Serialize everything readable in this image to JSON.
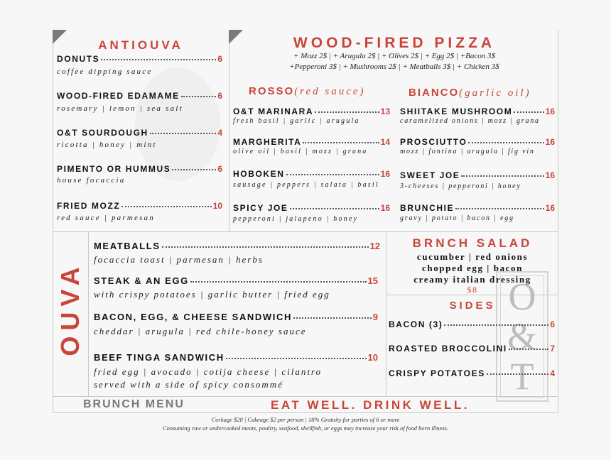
{
  "antipasti": {
    "title": "ANTIOUVA",
    "items": [
      {
        "name": "DONUTS",
        "price": "6",
        "desc": "coffee dipping sauce"
      },
      {
        "name": "WOOD-FIRED EDAMAME",
        "price": "6",
        "desc": "rosemary | lemon | sea salt"
      },
      {
        "name": "O&T SOURDOUGH",
        "price": "4",
        "desc": "ricotta | honey | mint"
      },
      {
        "name": "PIMENTO OR HUMMUS",
        "price": "6",
        "desc": "house focaccia"
      },
      {
        "name": "FRIED MOZZ",
        "price": "10",
        "desc": "red sauce | parmesan"
      }
    ]
  },
  "pizza": {
    "title": "WOOD-FIRED PIZZA",
    "addons_line1": "+ Mozz 2$  |  + Arugula 2$ |  + Olives 2$  | + Egg 2$  | +Bacon 3$",
    "addons_line2": "+Pepperoni 3$ | + Mushrooms 2$  | + Meatballs 3$ | + Chicken 3$",
    "rosso": {
      "title": "ROSSO",
      "subtitle": "(red sauce)",
      "items": [
        {
          "name": "O&T MARINARA",
          "price": "13",
          "desc": " fresh basil | garlic | arugula"
        },
        {
          "name": "MARGHERITA",
          "price": "14",
          "desc": "olive oil | basil | mozz | grana"
        },
        {
          "name": "HOBOKEN",
          "price": "16",
          "desc": "sausage | peppers | salata | basil"
        },
        {
          "name": "SPICY JOE",
          "price": "16",
          "desc": "pepperoni | jalapeno | honey"
        }
      ]
    },
    "bianco": {
      "title": "BIANCO",
      "subtitle": "(garlic oil)",
      "items": [
        {
          "name": "SHIITAKE MUSHROOM",
          "price": "16",
          "desc": "caramelized onions | mozz | grana"
        },
        {
          "name": "PROSCIUTTO",
          "price": "16",
          "desc": "mozz | fontina | arugula | fig vin"
        },
        {
          "name": "SWEET JOE",
          "price": "16",
          "desc": "3-cheeses | pepperoni | honey"
        },
        {
          "name": "BRUNCHIE",
          "price": "16",
          "desc": "gravy | potato | bacon | egg"
        }
      ]
    }
  },
  "ouva": {
    "title": "OUVA",
    "items": [
      {
        "name": "MEATBALLS",
        "price": "12",
        "desc": "focaccia toast | parmesan | herbs"
      },
      {
        "name": "STEAK & AN EGG",
        "price": "15",
        "desc": "with crispy potatoes | garlic butter | fried egg"
      },
      {
        "name": "BACON, EGG, & CHEESE SANDWICH",
        "price": "9",
        "desc": "cheddar | arugula | red chile-honey sauce"
      },
      {
        "name": "BEEF TINGA SANDWICH",
        "price": "10",
        "desc": "fried egg | avocado | cotija cheese | cilantro",
        "desc2": "served with a side of spicy consommé"
      }
    ]
  },
  "salad": {
    "title": "BRNCH SALAD",
    "lines": [
      "cucumber | red onions",
      "chopped egg | bacon",
      "creamy italian dressing"
    ],
    "price": "$8"
  },
  "sides": {
    "title": "SIDES",
    "items": [
      {
        "name": "BACON (3)",
        "price": "6"
      },
      {
        "name": "ROASTED BROCCOLINI",
        "price": "7"
      },
      {
        "name": "CRISPY POTATOES",
        "price": "4"
      }
    ]
  },
  "logo": {
    "text": "O&T"
  },
  "footer": {
    "brunch_menu": "BRUNCH MENU",
    "tagline": "EAT WELL. DRINK WELL.",
    "note1": "Corkage $20 | Cakeage $2 per person | 18% Gratuity for parties of 6 or more",
    "note2": "Consuming raw or undercooked meats, poultry, seafood, shellfish, or eggs may increase your risk of food born illness."
  },
  "colors": {
    "accent": "#c9453a",
    "gray": "#7a7a7a"
  }
}
